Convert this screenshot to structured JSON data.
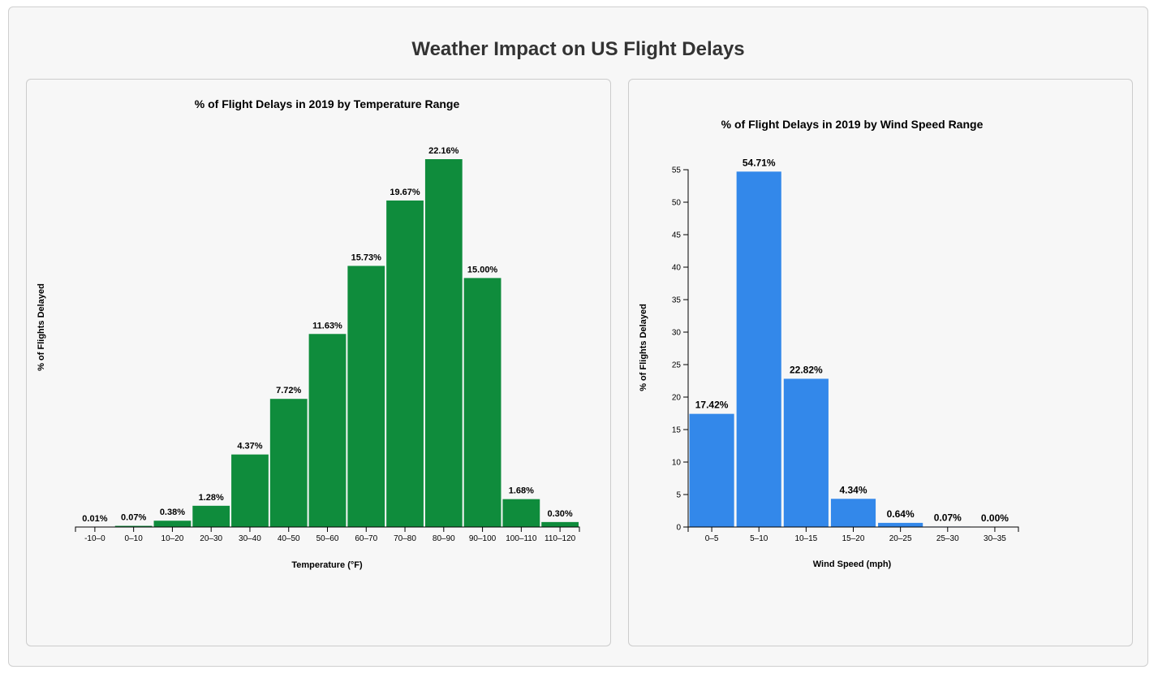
{
  "page": {
    "title": "Weather Impact on US Flight Delays"
  },
  "colors": {
    "temperature_bar": "#0f8c3c",
    "wind_bar": "#3388ea"
  },
  "chart_data": [
    {
      "type": "bar",
      "title": "% of Flight Delays in 2019 by Temperature Range",
      "xlabel": "Temperature (°F)",
      "ylabel": "% of Flights Delayed",
      "categories": [
        "-10–0",
        "0–10",
        "10–20",
        "20–30",
        "30–40",
        "40–50",
        "50–60",
        "60–70",
        "70–80",
        "80–90",
        "90–100",
        "100–110",
        "110–120"
      ],
      "values": [
        0.01,
        0.07,
        0.38,
        1.28,
        4.37,
        7.72,
        11.63,
        15.73,
        19.67,
        22.16,
        15.0,
        1.68,
        0.3
      ],
      "data_labels": [
        "0.01%",
        "0.07%",
        "0.38%",
        "1.28%",
        "4.37%",
        "7.72%",
        "11.63%",
        "15.73%",
        "19.67%",
        "22.16%",
        "15.00%",
        "1.68%",
        "0.30%"
      ],
      "ylim": [
        0,
        22.16
      ],
      "y_axis_visible": false,
      "grid": false,
      "bar_color": "#0f8c3c"
    },
    {
      "type": "bar",
      "title": "% of Flight Delays in 2019 by Wind Speed Range",
      "xlabel": "Wind Speed (mph)",
      "ylabel": "% of Flights Delayed",
      "categories": [
        "0–5",
        "5–10",
        "10–15",
        "15–20",
        "20–25",
        "25–30",
        "30–35"
      ],
      "values": [
        17.42,
        54.71,
        22.82,
        4.34,
        0.64,
        0.07,
        0.0
      ],
      "data_labels": [
        "17.42%",
        "54.71%",
        "22.82%",
        "4.34%",
        "0.64%",
        "0.07%",
        "0.00%"
      ],
      "ylim": [
        0,
        55
      ],
      "yticks": [
        0,
        5,
        10,
        15,
        20,
        25,
        30,
        35,
        40,
        45,
        50,
        55
      ],
      "y_axis_visible": true,
      "grid": false,
      "bar_color": "#3388ea"
    }
  ]
}
